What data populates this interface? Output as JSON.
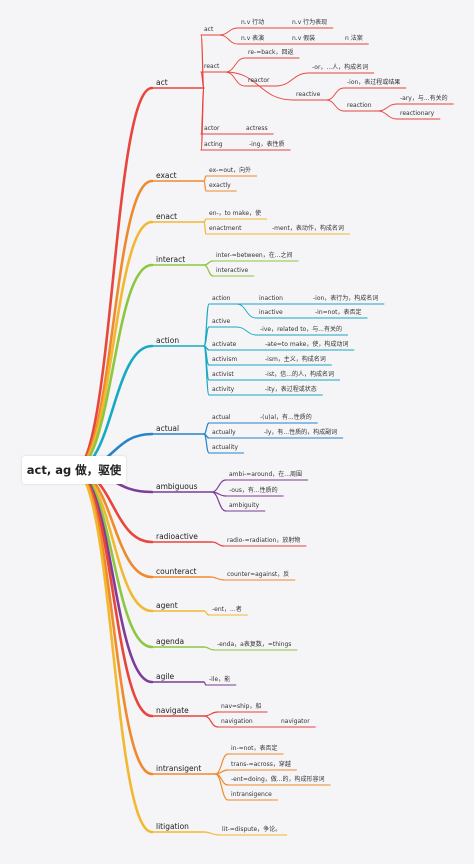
{
  "root": "act, ag 做，驱使",
  "branches": [
    {
      "label": "act",
      "color": "#e8453c",
      "nodes": [
        {
          "label": "act",
          "sub": [
            {
              "label": "n.v 行动",
              "sub": [
                {
                  "label": "n.v 行为表现"
                }
              ]
            },
            {
              "label": "n.v 表演",
              "sub": [
                {
                  "label": "n.v 假装"
                },
                {
                  "label": "n 法案"
                }
              ]
            }
          ]
        },
        {
          "label": "react",
          "sub": [
            {
              "label": "re-=back，回返"
            },
            {
              "label": "reactor",
              "sub": [
                {
                  "label": "-or，...人，构成名词"
                }
              ]
            },
            {
              "label": "reactive",
              "sub": [
                {
                  "label": "-ion，表过程或结果"
                },
                {
                  "label": "reaction",
                  "sub": [
                    {
                      "label": "-ary，与...有关的"
                    },
                    {
                      "label": "reactionary"
                    }
                  ]
                }
              ]
            }
          ]
        },
        {
          "label": "actor",
          "sub": [
            {
              "label": "actress"
            }
          ]
        },
        {
          "label": "acting",
          "sub": [
            {
              "label": "-ing，表性质"
            }
          ]
        }
      ]
    },
    {
      "label": "exact",
      "color": "#ef8a2c",
      "nodes": [
        {
          "label": "ex-=out，向外"
        },
        {
          "label": "exactly"
        }
      ]
    },
    {
      "label": "enact",
      "color": "#f2b830",
      "nodes": [
        {
          "label": "en-，to make，使"
        },
        {
          "label": "enactment",
          "sub": [
            {
              "label": "-ment，表动作，构成名词"
            }
          ]
        }
      ]
    },
    {
      "label": "interact",
      "color": "#8dc63f",
      "nodes": [
        {
          "label": "inter-=between，在...之间"
        },
        {
          "label": "interactive"
        }
      ]
    },
    {
      "label": "action",
      "color": "#17a9c3",
      "nodes": [
        {
          "label": "action",
          "sub": [
            {
              "label": "inaction",
              "sub": [
                {
                  "label": "-ion，表行为，构成名词"
                }
              ]
            },
            {
              "label": "inactive",
              "sub": [
                {
                  "label": "-in=not，表否定"
                }
              ]
            }
          ]
        },
        {
          "label": "active",
          "sub": [
            {
              "label": "-ive，related to，与...有关的"
            }
          ]
        },
        {
          "label": "activate",
          "sub": [
            {
              "label": "-ate=to make，使，构成动词"
            }
          ]
        },
        {
          "label": "activism",
          "sub": [
            {
              "label": "-ism，主义，构成名词"
            }
          ]
        },
        {
          "label": "activist",
          "sub": [
            {
              "label": "-ist，信...的人，构成名词"
            }
          ]
        },
        {
          "label": "activity",
          "sub": [
            {
              "label": "-ity，表过程或状态"
            }
          ]
        }
      ]
    },
    {
      "label": "actual",
      "color": "#2784c9",
      "nodes": [
        {
          "label": "actual",
          "sub": [
            {
              "label": "-(u)al，有...性质的"
            }
          ]
        },
        {
          "label": "actually",
          "sub": [
            {
              "label": "-ly，有...性质的，构成副词"
            }
          ]
        },
        {
          "label": "actuality"
        }
      ]
    },
    {
      "label": "ambiguous",
      "color": "#7d3c98",
      "nodes": [
        {
          "label": "ambi-=around，在...周围"
        },
        {
          "label": "-ous，有...性质的"
        },
        {
          "label": "ambiguity"
        }
      ]
    },
    {
      "label": "radioactive",
      "color": "#e8453c",
      "nodes": [
        {
          "label": "radio-=radiation，放射物"
        }
      ]
    },
    {
      "label": "counteract",
      "color": "#ef8a2c",
      "nodes": [
        {
          "label": "counter=against，反"
        }
      ]
    },
    {
      "label": "agent",
      "color": "#f2b830",
      "nodes": [
        {
          "label": "-ent，...者"
        }
      ]
    },
    {
      "label": "agenda",
      "color": "#8dc63f",
      "nodes": [
        {
          "label": "-enda，a表复数，=things"
        }
      ]
    },
    {
      "label": "agile",
      "color": "#7d3c98",
      "nodes": [
        {
          "label": "-ile，能"
        }
      ]
    },
    {
      "label": "navigate",
      "color": "#e8453c",
      "nodes": [
        {
          "label": "nav=ship，船"
        },
        {
          "label": "navigation",
          "sub": [
            {
              "label": "navigator"
            }
          ]
        }
      ]
    },
    {
      "label": "intransigent",
      "color": "#ef8a2c",
      "nodes": [
        {
          "label": "in-=not，表否定"
        },
        {
          "label": "trans-=across，穿越"
        },
        {
          "label": "-ent=doing，做...的，构成形容词"
        },
        {
          "label": "intransigence"
        }
      ]
    },
    {
      "label": "litigation",
      "color": "#f2b830",
      "nodes": [
        {
          "label": "lit-=dispute，争论。"
        }
      ]
    }
  ]
}
